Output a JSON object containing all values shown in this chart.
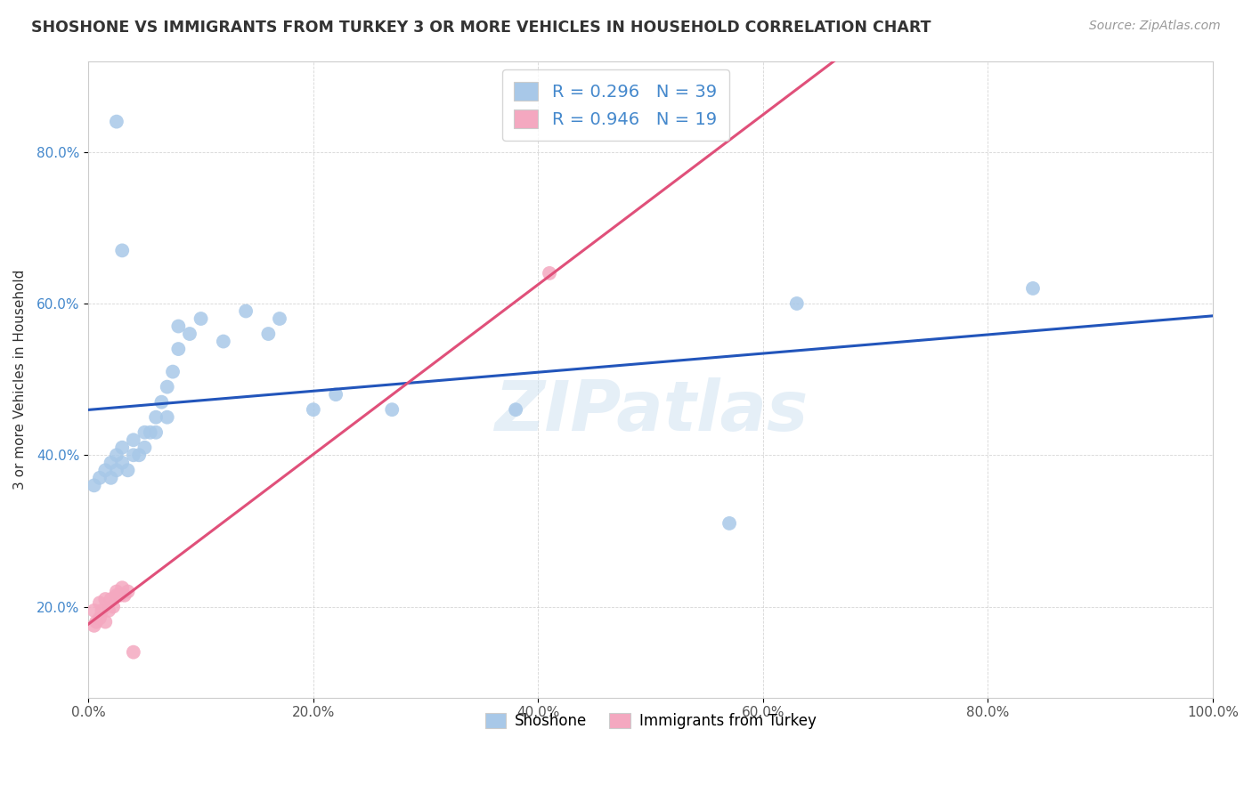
{
  "title": "SHOSHONE VS IMMIGRANTS FROM TURKEY 3 OR MORE VEHICLES IN HOUSEHOLD CORRELATION CHART",
  "source": "Source: ZipAtlas.com",
  "ylabel": "3 or more Vehicles in Household",
  "x_tick_labels": [
    "0.0%",
    "20.0%",
    "40.0%",
    "60.0%",
    "80.0%",
    "100.0%"
  ],
  "y_tick_labels": [
    "20.0%",
    "40.0%",
    "60.0%",
    "80.0%"
  ],
  "xlim": [
    0.0,
    1.0
  ],
  "ylim": [
    0.08,
    0.92
  ],
  "legend_label_1": "Shoshone",
  "legend_label_2": "Immigrants from Turkey",
  "r1": 0.296,
  "n1": 39,
  "r2": 0.946,
  "n2": 19,
  "color_blue": "#a8c8e8",
  "color_pink": "#f4a8c0",
  "line_color_blue": "#2255bb",
  "line_color_pink": "#e0507a",
  "background_color": "#ffffff",
  "grid_color": "#cccccc",
  "watermark": "ZIPatlas",
  "shoshone_x": [
    0.005,
    0.01,
    0.015,
    0.02,
    0.02,
    0.025,
    0.025,
    0.03,
    0.03,
    0.035,
    0.04,
    0.04,
    0.045,
    0.05,
    0.05,
    0.055,
    0.06,
    0.06,
    0.065,
    0.07,
    0.07,
    0.075,
    0.08,
    0.08,
    0.09,
    0.1,
    0.12,
    0.14,
    0.16,
    0.17,
    0.2,
    0.22,
    0.27,
    0.38,
    0.57,
    0.63,
    0.84,
    0.03,
    0.025
  ],
  "shoshone_y": [
    0.36,
    0.37,
    0.38,
    0.37,
    0.39,
    0.38,
    0.4,
    0.39,
    0.41,
    0.38,
    0.4,
    0.42,
    0.4,
    0.41,
    0.43,
    0.43,
    0.45,
    0.43,
    0.47,
    0.45,
    0.49,
    0.51,
    0.54,
    0.57,
    0.56,
    0.58,
    0.55,
    0.59,
    0.56,
    0.58,
    0.46,
    0.48,
    0.46,
    0.46,
    0.31,
    0.6,
    0.62,
    0.67,
    0.84
  ],
  "turkey_x": [
    0.005,
    0.005,
    0.007,
    0.01,
    0.01,
    0.012,
    0.015,
    0.015,
    0.018,
    0.02,
    0.022,
    0.025,
    0.025,
    0.028,
    0.03,
    0.032,
    0.035,
    0.04,
    0.41
  ],
  "turkey_y": [
    0.175,
    0.195,
    0.18,
    0.185,
    0.205,
    0.195,
    0.18,
    0.21,
    0.195,
    0.21,
    0.2,
    0.215,
    0.22,
    0.215,
    0.225,
    0.215,
    0.22,
    0.14,
    0.64
  ]
}
